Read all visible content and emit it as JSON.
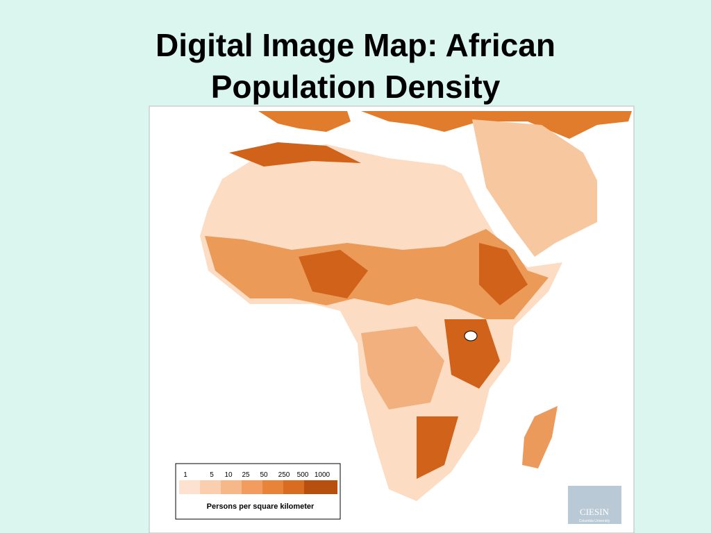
{
  "title": {
    "line1": "Digital Image Map:  African",
    "line2": "Population Density"
  },
  "legend": {
    "ticks": [
      "1",
      "5",
      "10",
      "25",
      "50",
      "250",
      "500",
      "1000"
    ],
    "caption": "Persons per square kilometer"
  },
  "logo": {
    "name": "CIESIN",
    "subtitle": "Columbia University"
  }
}
